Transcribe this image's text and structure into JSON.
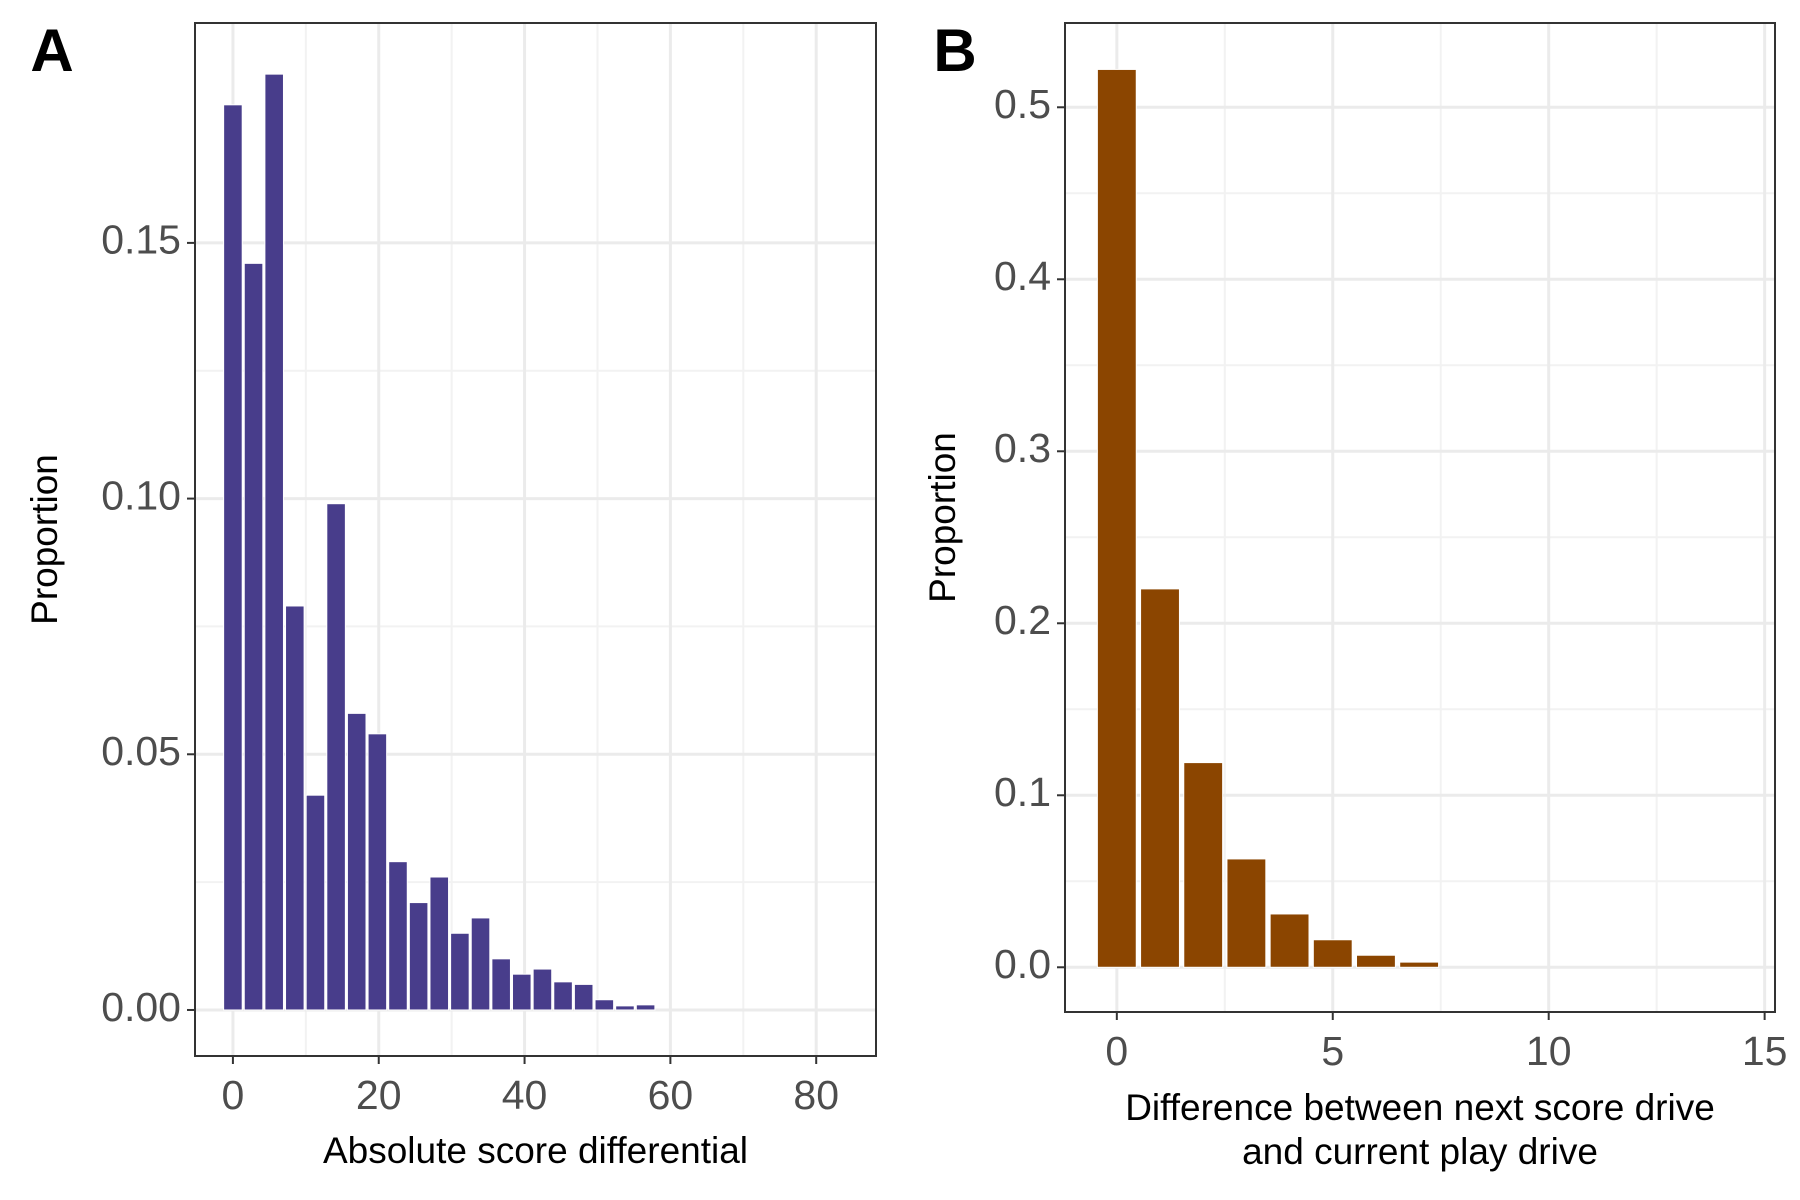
{
  "chart_data": [
    {
      "type": "bar",
      "panel_label": "A",
      "xlabel": "Absolute score differential",
      "ylabel": "Proportion",
      "color": "#483D8B",
      "x": [
        0,
        2.83,
        5.66,
        8.49,
        11.32,
        14.15,
        16.98,
        19.81,
        22.64,
        25.47,
        28.3,
        31.13,
        33.96,
        36.79,
        39.62,
        42.45,
        45.28,
        48.11,
        50.94,
        53.77,
        56.6,
        59.43,
        62.26,
        65.09,
        67.92,
        70.75,
        73.58,
        76.41,
        79.24,
        82.07
      ],
      "values": [
        0.177,
        0.146,
        0.183,
        0.079,
        0.042,
        0.099,
        0.058,
        0.054,
        0.029,
        0.021,
        0.026,
        0.015,
        0.018,
        0.01,
        0.007,
        0.008,
        0.0055,
        0.005,
        0.002,
        0.0008,
        0.001,
        0,
        0,
        0,
        0,
        0,
        0,
        0,
        0,
        0
      ],
      "xlim": [
        -5.2,
        88.2
      ],
      "xticks": [
        0,
        20,
        40,
        60,
        80
      ],
      "ylim": [
        -0.009,
        0.193
      ],
      "yticks": [
        {
          "value": 0,
          "label": "0.00"
        },
        {
          "value": 0.05,
          "label": "0.05"
        },
        {
          "value": 0.1,
          "label": "0.10"
        },
        {
          "value": 0.15,
          "label": "0.15"
        }
      ],
      "grid": true
    },
    {
      "type": "bar",
      "panel_label": "B",
      "xlabel": [
        "Difference between next score drive",
        "and current play drive"
      ],
      "ylabel": "Proportion",
      "color": "#8B4500",
      "x": [
        0,
        1,
        2,
        3,
        4,
        5,
        6,
        7,
        8,
        9,
        10,
        11,
        12,
        13,
        14
      ],
      "values": [
        0.522,
        0.22,
        0.119,
        0.063,
        0.031,
        0.016,
        0.007,
        0.003,
        0,
        0,
        0,
        0,
        0,
        0,
        0
      ],
      "xlim": [
        -1.2,
        15.24
      ],
      "xticks": [
        0,
        5,
        10,
        15
      ],
      "ylim": [
        -0.026,
        0.549
      ],
      "yticks": [
        {
          "value": 0,
          "label": "0.0"
        },
        0.1,
        0.2,
        0.3,
        0.4,
        0.5
      ],
      "grid": true
    }
  ]
}
